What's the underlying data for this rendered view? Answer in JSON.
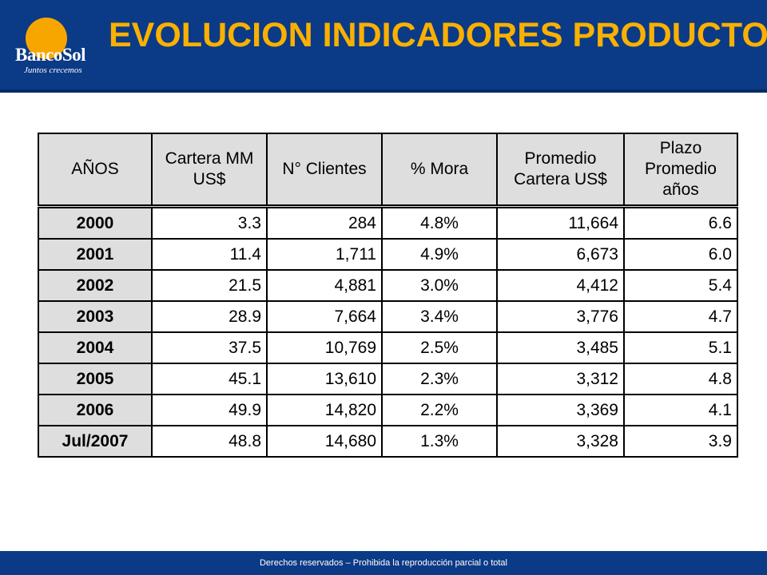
{
  "brand": {
    "name": "BancoSol",
    "tagline": "Juntos crecemos",
    "colors": {
      "header": "#0b3a86",
      "sun": "#f7a600",
      "title": "#f9b000"
    }
  },
  "title": "EVOLUCION INDICADORES PRODUCTO",
  "table": {
    "headers": [
      "AÑOS",
      "Cartera MM US$",
      "N° Clientes",
      "% Mora",
      "Promedio Cartera US$",
      "Plazo Promedio años"
    ],
    "rows": [
      [
        "2000",
        "3.3",
        "284",
        "4.8%",
        "11,664",
        "6.6"
      ],
      [
        "2001",
        "11.4",
        "1,711",
        "4.9%",
        "6,673",
        "6.0"
      ],
      [
        "2002",
        "21.5",
        "4,881",
        "3.0%",
        "4,412",
        "5.4"
      ],
      [
        "2003",
        "28.9",
        "7,664",
        "3.4%",
        "3,776",
        "4.7"
      ],
      [
        "2004",
        "37.5",
        "10,769",
        "2.5%",
        "3,485",
        "5.1"
      ],
      [
        "2005",
        "45.1",
        "13,610",
        "2.3%",
        "3,312",
        "4.8"
      ],
      [
        "2006",
        "49.9",
        "14,820",
        "2.2%",
        "3,369",
        "4.1"
      ],
      [
        "Jul/2007",
        "48.8",
        "14,680",
        "1.3%",
        "3,328",
        "3.9"
      ]
    ]
  },
  "footer": "Derechos reservados – Prohibida la reproducción parcial o total"
}
